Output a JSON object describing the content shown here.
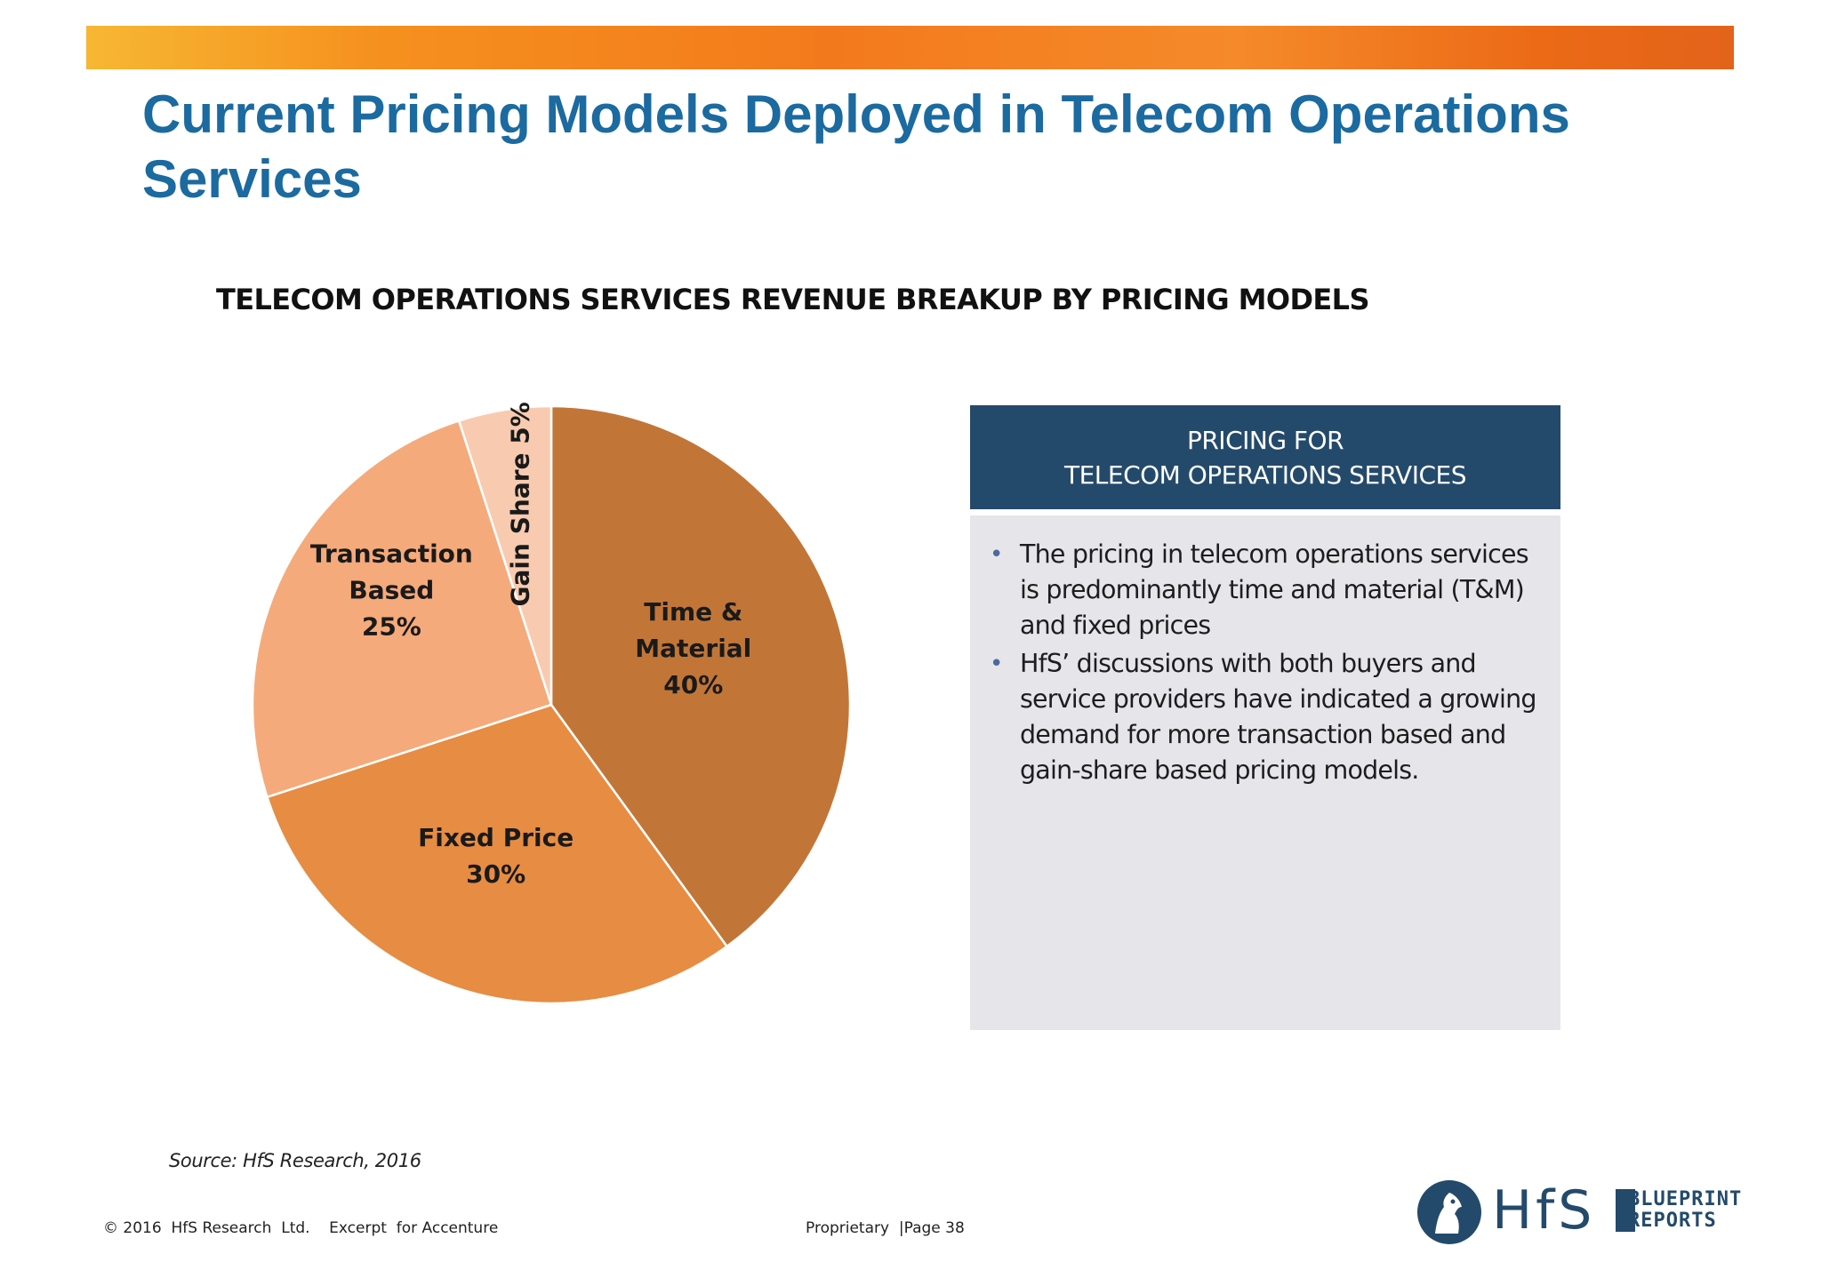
{
  "title": "Current Pricing Models Deployed in Telecom Operations Services",
  "chart_data": {
    "type": "pie",
    "title": "TELECOM OPERATIONS SERVICES REVENUE BREAKUP BY PRICING MODELS",
    "slices": [
      {
        "label": "Time & Material",
        "value": 40,
        "value_label": "40%",
        "color": "#c17638"
      },
      {
        "label": "Fixed Price",
        "value": 30,
        "value_label": "30%",
        "color": "#e78c43"
      },
      {
        "label": "Transaction Based",
        "value": 25,
        "value_label": "25%",
        "color": "#f5aa7b"
      },
      {
        "label": "Gain Share",
        "value": 5,
        "value_label": "5%",
        "color": "#f8cbb0"
      }
    ]
  },
  "panel": {
    "heading_line1": "PRICING FOR",
    "heading_line2": "TELECOM OPERATIONS SERVICES",
    "bullets": [
      "The pricing in telecom operations services is predominantly time and material (T&M) and fixed prices",
      "HfS’ discussions  with both buyers and service providers have indicated a growing demand for more transaction based and gain-share based pricing models."
    ]
  },
  "source": "Source: HfS Research, 2016",
  "footer": {
    "left": "© 2016  HfS Research  Ltd.    Excerpt  for Accenture",
    "center": "Proprietary  |Page 38"
  },
  "logo": {
    "brand": "HfS",
    "sub_line1": "BLUEPRINT",
    "sub_line2": "REPORTS"
  }
}
